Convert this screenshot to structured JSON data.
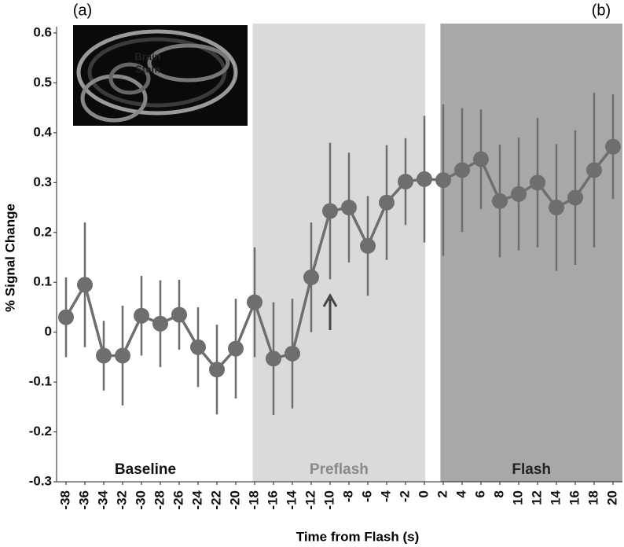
{
  "chart_data": {
    "type": "line",
    "panel_labels": [
      "(a)",
      "(b)"
    ],
    "xlabel": "Time from Flash (s)",
    "ylabel": "% Signal Change",
    "x": [
      -38,
      -36,
      -34,
      -32,
      -30,
      -28,
      -26,
      -24,
      -22,
      -20,
      -18,
      -16,
      -14,
      -12,
      -10,
      -8,
      -6,
      -4,
      -2,
      0,
      2,
      4,
      6,
      8,
      10,
      12,
      14,
      16,
      18,
      20
    ],
    "series": [
      {
        "color": "#6e6e6e",
        "values": [
          0.03,
          0.095,
          -0.047,
          -0.047,
          0.033,
          0.017,
          0.035,
          -0.03,
          -0.075,
          -0.033,
          0.06,
          -0.053,
          -0.043,
          0.11,
          0.243,
          0.25,
          0.173,
          0.26,
          0.302,
          0.307,
          0.305,
          0.325,
          0.347,
          0.263,
          0.277,
          0.3,
          0.25,
          0.27,
          0.325,
          0.372
        ],
        "errors": [
          0.08,
          0.125,
          0.07,
          0.1,
          0.08,
          0.087,
          0.07,
          0.08,
          0.09,
          0.1,
          0.11,
          0.113,
          0.11,
          0.11,
          0.137,
          0.11,
          0.1,
          0.115,
          0.087,
          0.127,
          0.152,
          0.124,
          0.1,
          0.113,
          0.113,
          0.13,
          0.127,
          0.135,
          0.155,
          0.105
        ]
      }
    ],
    "xlim": [
      -39,
      21
    ],
    "xticks": [
      -38,
      -36,
      -34,
      -32,
      -30,
      -28,
      -26,
      -24,
      -22,
      -20,
      -18,
      -16,
      -14,
      -12,
      -10,
      -8,
      -6,
      -4,
      -2,
      0,
      2,
      4,
      6,
      8,
      10,
      12,
      14,
      16,
      18,
      20
    ],
    "ylim": [
      -0.3,
      0.6
    ],
    "yticks": [
      0.6,
      0.5,
      0.4,
      0.3,
      0.2,
      0.1,
      0,
      -0.1,
      -0.2,
      -0.3
    ],
    "phases": [
      {
        "label": "Baseline",
        "label_color": "#111111"
      },
      {
        "label": "Preflash",
        "span": [
          -18.2,
          0.1
        ],
        "color": "#dadada",
        "label_color": "#8a8a8a"
      },
      {
        "label": "Flash",
        "span": [
          1.7,
          21
        ],
        "color": "#a8a8a8",
        "label_color": "#222222"
      }
    ],
    "inset_label": [
      "Brain",
      "Stem"
    ]
  }
}
